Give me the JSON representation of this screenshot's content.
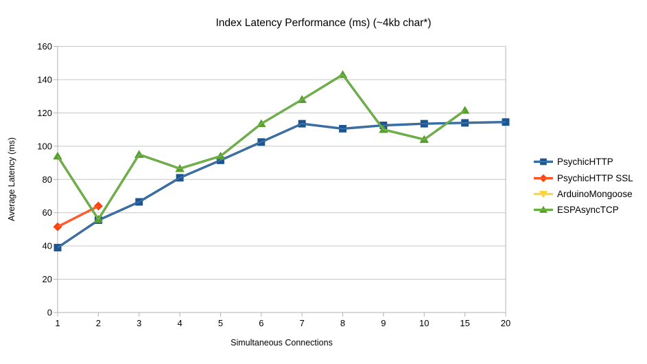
{
  "chart_data": {
    "type": "line",
    "title": "Index Latency Performance (ms) (~4kb char*)",
    "xlabel": "Simultaneous Connections",
    "ylabel": "Average Latency (ms)",
    "categories": [
      "1",
      "2",
      "3",
      "4",
      "5",
      "6",
      "7",
      "8",
      "9",
      "10",
      "15",
      "20"
    ],
    "ylim": [
      0,
      160
    ],
    "ytick_step": 20,
    "grid": "horizontal",
    "grid_color": "#c6c6c6",
    "axis_color": "#b3b3b3",
    "legend_position": "right",
    "series": [
      {
        "name": "PsychicHTTP",
        "marker": "square",
        "color": "#1B5693",
        "values": [
          39,
          55.5,
          66.5,
          81,
          91.5,
          102.5,
          113.5,
          110.5,
          112.5,
          113.5,
          114,
          114.5
        ]
      },
      {
        "name": "PsychicHTTP SSL",
        "marker": "diamond",
        "color": "#FF420E",
        "values": [
          51.5,
          64,
          null,
          null,
          null,
          null,
          null,
          null,
          null,
          null,
          null,
          null
        ]
      },
      {
        "name": "ArduinoMongoose",
        "marker": "triangle-down",
        "color": "#FFD320",
        "values": [
          null,
          null,
          null,
          null,
          null,
          null,
          null,
          null,
          null,
          null,
          null,
          null
        ]
      },
      {
        "name": "ESPAsyncTCP",
        "marker": "triangle-up",
        "color": "#57A02D",
        "values": [
          94,
          56,
          95,
          86.5,
          94,
          113.5,
          128,
          143,
          110,
          104,
          121.5,
          null
        ]
      }
    ]
  }
}
